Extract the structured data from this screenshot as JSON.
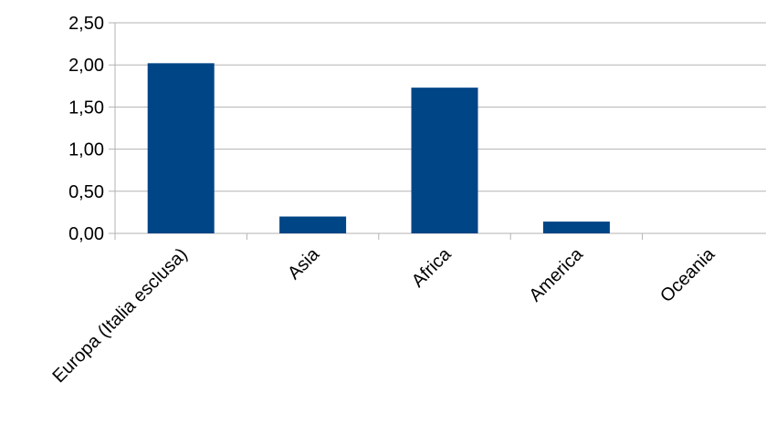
{
  "chart_data": {
    "type": "bar",
    "title": "",
    "xlabel": "",
    "ylabel": "",
    "categories": [
      "Europa (Italia esclusa)",
      "Asia",
      "Africa",
      "America",
      "Oceania"
    ],
    "values": [
      2.02,
      0.2,
      1.73,
      0.14,
      0.0
    ],
    "ylim": [
      0,
      2.5
    ],
    "yticks": [
      0,
      0.5,
      1.0,
      1.5,
      2.0,
      2.5
    ],
    "ytick_labels": [
      "0,00",
      "0,50",
      "1,00",
      "1,50",
      "2,00",
      "2,50"
    ],
    "grid": true,
    "legend": "none",
    "bar_color": "#004586",
    "grid_color": "#b3b3b3"
  }
}
